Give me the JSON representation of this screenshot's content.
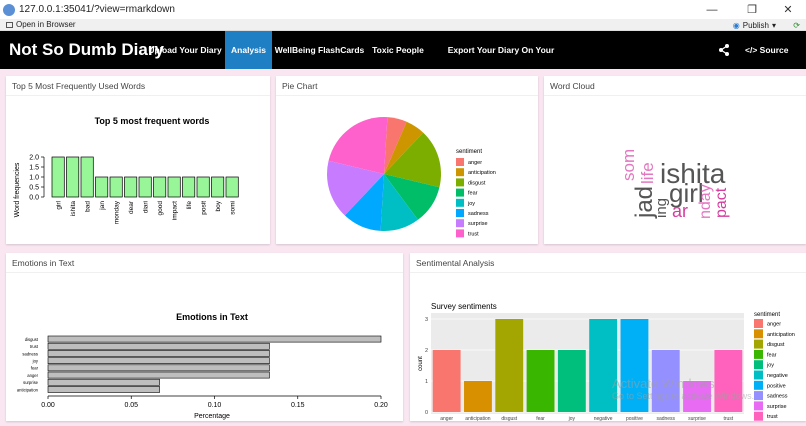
{
  "browser": {
    "url": "127.0.0.1:35041/?view=rmarkdown",
    "open_in_browser": "Open in Browser",
    "publish": "Publish"
  },
  "navbar": {
    "brand": "Not So Dumb Diary",
    "items": [
      {
        "label": "Upload Your Diary"
      },
      {
        "label": "Analysis"
      },
      {
        "label": "WellBeing FlashCards"
      },
      {
        "label": "Toxic People"
      },
      {
        "label": "Export Your Diary On Your Whatsapp"
      }
    ],
    "source_code": "Source Code"
  },
  "panels": {
    "top_words": {
      "title": "Top 5 Most Frequently Used Words"
    },
    "pie": {
      "title": "Pie Chart"
    },
    "word_cloud": {
      "title": "Word Cloud"
    },
    "emotions": {
      "title": "Emotions in Text"
    },
    "sentimental": {
      "title": "Sentimental Analysis"
    }
  },
  "word_cloud": {
    "words": [
      {
        "text": "som",
        "color": "#e377c2"
      },
      {
        "text": "life",
        "color": "#e377c2"
      },
      {
        "text": "ishita",
        "color": "#555555"
      },
      {
        "text": "jad",
        "color": "#555555"
      },
      {
        "text": "girl",
        "color": "#555555"
      },
      {
        "text": "nday",
        "color": "#e377c2"
      },
      {
        "text": "ing",
        "color": "#555555"
      },
      {
        "text": "ar",
        "color": "#d63ba0"
      },
      {
        "text": "pact",
        "color": "#d63ba0"
      }
    ]
  },
  "watermark": {
    "line1": "Activate Windows",
    "line2": "Go to Settings to activate Windows."
  },
  "chart_data": [
    {
      "type": "bar",
      "title": "Top 5 most frequent words",
      "xlabel": "",
      "ylabel": "Word frequencies",
      "categories": [
        "girl",
        "ishita",
        "bad",
        "jan",
        "monday",
        "dear",
        "diari",
        "good",
        "impact",
        "life",
        "posit",
        "boy",
        "somi"
      ],
      "values": [
        2,
        2,
        2,
        1,
        1,
        1,
        1,
        1,
        1,
        1,
        1,
        1,
        1
      ],
      "ylim": [
        0,
        2
      ],
      "yticks": [
        "0.0",
        "0.5",
        "1.0",
        "1.5",
        "2.0"
      ],
      "color": "#98f598"
    },
    {
      "type": "pie",
      "legend_title": "sentiment",
      "categories": [
        "anger",
        "anticipation",
        "disgust",
        "fear",
        "joy",
        "sadness",
        "surprise",
        "trust"
      ],
      "values": [
        1,
        1,
        3,
        2,
        2,
        2,
        3,
        4
      ],
      "colors": [
        "#f8766d",
        "#cd9600",
        "#7cae00",
        "#00be67",
        "#00bfc4",
        "#00a9ff",
        "#c77cff",
        "#ff61cc"
      ]
    },
    {
      "type": "bar",
      "orientation": "horizontal",
      "title": "Emotions in Text",
      "xlabel": "Percentage",
      "categories": [
        "disgust",
        "trust",
        "sadness",
        "joy",
        "fear",
        "anger",
        "surprise",
        "anticipation"
      ],
      "values": [
        0.2,
        0.133,
        0.133,
        0.133,
        0.133,
        0.133,
        0.067,
        0.067
      ],
      "xlim": [
        0,
        0.2
      ],
      "xticks": [
        "0.00",
        "0.05",
        "0.10",
        "0.15",
        "0.20"
      ]
    },
    {
      "type": "bar",
      "title": "Survey sentiments",
      "xlabel": "sentiment",
      "ylabel": "count",
      "legend_title": "sentiment",
      "categories": [
        "anger",
        "anticipation",
        "disgust",
        "fear",
        "joy",
        "negative",
        "positive",
        "sadness",
        "surprise",
        "trust"
      ],
      "values": [
        2,
        1,
        3,
        2,
        2,
        3,
        3,
        2,
        1,
        2
      ],
      "colors": [
        "#f8766d",
        "#d89000",
        "#a3a500",
        "#39b600",
        "#00bf7d",
        "#00bfc4",
        "#00b0f6",
        "#9590ff",
        "#e76bf3",
        "#ff62bc"
      ],
      "ylim": [
        0,
        3
      ],
      "yticks": [
        "0",
        "1",
        "2",
        "3"
      ]
    }
  ]
}
